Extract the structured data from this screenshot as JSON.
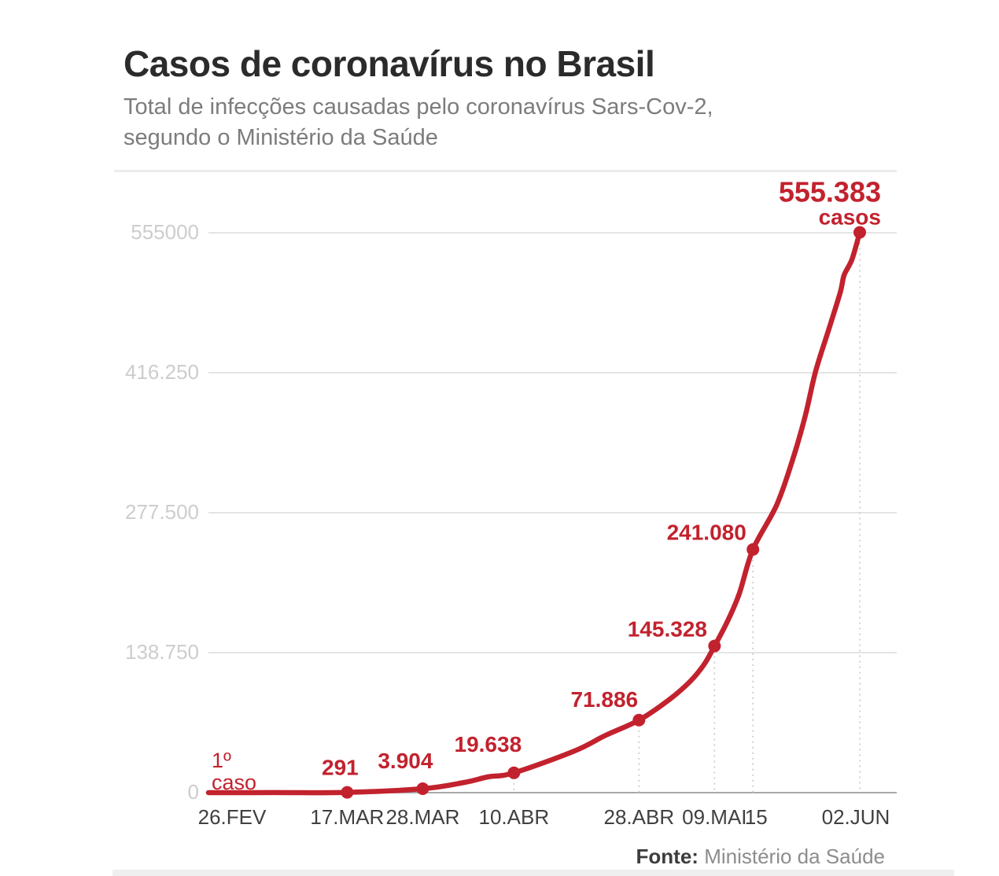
{
  "header": {
    "title": "Casos de coronavírus no Brasil",
    "subtitle_line1": "Total de infecções causadas pelo coronavírus Sars-Cov-2,",
    "subtitle_line2": "segundo o Ministério da Saúde"
  },
  "footer": {
    "source_label": "Fonte:",
    "source_value": "Ministério da Saúde"
  },
  "colors": {
    "line_red": "#c2222e",
    "grid": "#e4e4e4",
    "zero_axis": "#a9a9a9",
    "guide_dash": "#c8c8c8",
    "y_tick_text": "#cdcdcd",
    "x_tick_text": "#404040"
  },
  "chart_data": {
    "type": "line",
    "title": "Casos de coronavírus no Brasil",
    "subtitle": "Total de infecções causadas pelo coronavírus Sars-Cov-2, segundo o Ministério da Saúde",
    "source": "Fonte: Ministério da Saúde",
    "grid": true,
    "legend": "none",
    "y_axis": {
      "max": 555000,
      "min": 0,
      "tick_values": [
        555000,
        416250,
        277500,
        138750,
        0
      ],
      "tick_labels": [
        "555000",
        "416.250",
        "277.500",
        "138.750",
        "0"
      ]
    },
    "x_axis": {
      "tick_labels": [
        "26.FEV",
        "17.MAR",
        "28.MAR",
        "10.ABR",
        "28.ABR",
        "09.MAI",
        "15",
        "02.JUN"
      ]
    },
    "series": [
      {
        "name": "casos",
        "points": [
          {
            "date": "26.FEV",
            "value": 1,
            "fx": 0,
            "tick": "26.FEV",
            "label": "1º caso"
          },
          {
            "date": "06.MAR",
            "value": 50,
            "fx": 0.1
          },
          {
            "date": "17.MAR",
            "value": 291,
            "fx": 0.213,
            "tick": "17.MAR",
            "label": "291",
            "dot": true
          },
          {
            "date": "28.MAR",
            "value": 3904,
            "fx": 0.329,
            "tick": "28.MAR",
            "label": "3.904",
            "dot": true
          },
          {
            "date": "03.ABR",
            "value": 10100,
            "fx": 0.393
          },
          {
            "date": "06.ABR",
            "value": 15600,
            "fx": 0.429
          },
          {
            "date": "10.ABR",
            "value": 19638,
            "fx": 0.469,
            "tick": "10.ABR",
            "label": "19.638",
            "dot": true,
            "guide": true
          },
          {
            "date": "20.ABR",
            "value": 41300,
            "fx": 0.562
          },
          {
            "date": "24.ABR",
            "value": 56900,
            "fx": 0.61
          },
          {
            "date": "28.ABR",
            "value": 71886,
            "fx": 0.661,
            "tick": "28.ABR",
            "label": "71.886",
            "dot": true,
            "guide": true
          },
          {
            "date": "03.MAI",
            "value": 92000,
            "fx": 0.707
          },
          {
            "date": "06.MAI",
            "value": 109900,
            "fx": 0.739
          },
          {
            "date": "08.MAI",
            "value": 127100,
            "fx": 0.761
          },
          {
            "date": "09.MAI",
            "value": 145328,
            "fx": 0.777,
            "tick": "09.MAI",
            "label": "145.328",
            "dot": true,
            "guide": true
          },
          {
            "date": "11.MAI",
            "value": 170000,
            "fx": 0.797
          },
          {
            "date": "13.MAI",
            "value": 197200,
            "fx": 0.815
          },
          {
            "date": "15.MAI",
            "value": 241080,
            "fx": 0.836,
            "tick": "15",
            "label": "241.080",
            "dot": true,
            "guide": true
          },
          {
            "date": "19.MAI",
            "value": 284500,
            "fx": 0.872
          },
          {
            "date": "21.MAI",
            "value": 328200,
            "fx": 0.896
          },
          {
            "date": "24.MAI",
            "value": 372600,
            "fx": 0.916
          },
          {
            "date": "26.MAI",
            "value": 417100,
            "fx": 0.932
          },
          {
            "date": "28.MAI",
            "value": 458400,
            "fx": 0.952
          },
          {
            "date": "30.MAI",
            "value": 495800,
            "fx": 0.97
          },
          {
            "date": "31.MAI",
            "value": 513000,
            "fx": 0.976
          },
          {
            "date": "01.JUN",
            "value": 528600,
            "fx": 0.988
          },
          {
            "date": "02.JUN",
            "value": 555383,
            "fx": 1,
            "tick": "02.JUN",
            "label": "555.383",
            "unit": "casos",
            "dot": true,
            "guide": true
          }
        ]
      }
    ]
  }
}
